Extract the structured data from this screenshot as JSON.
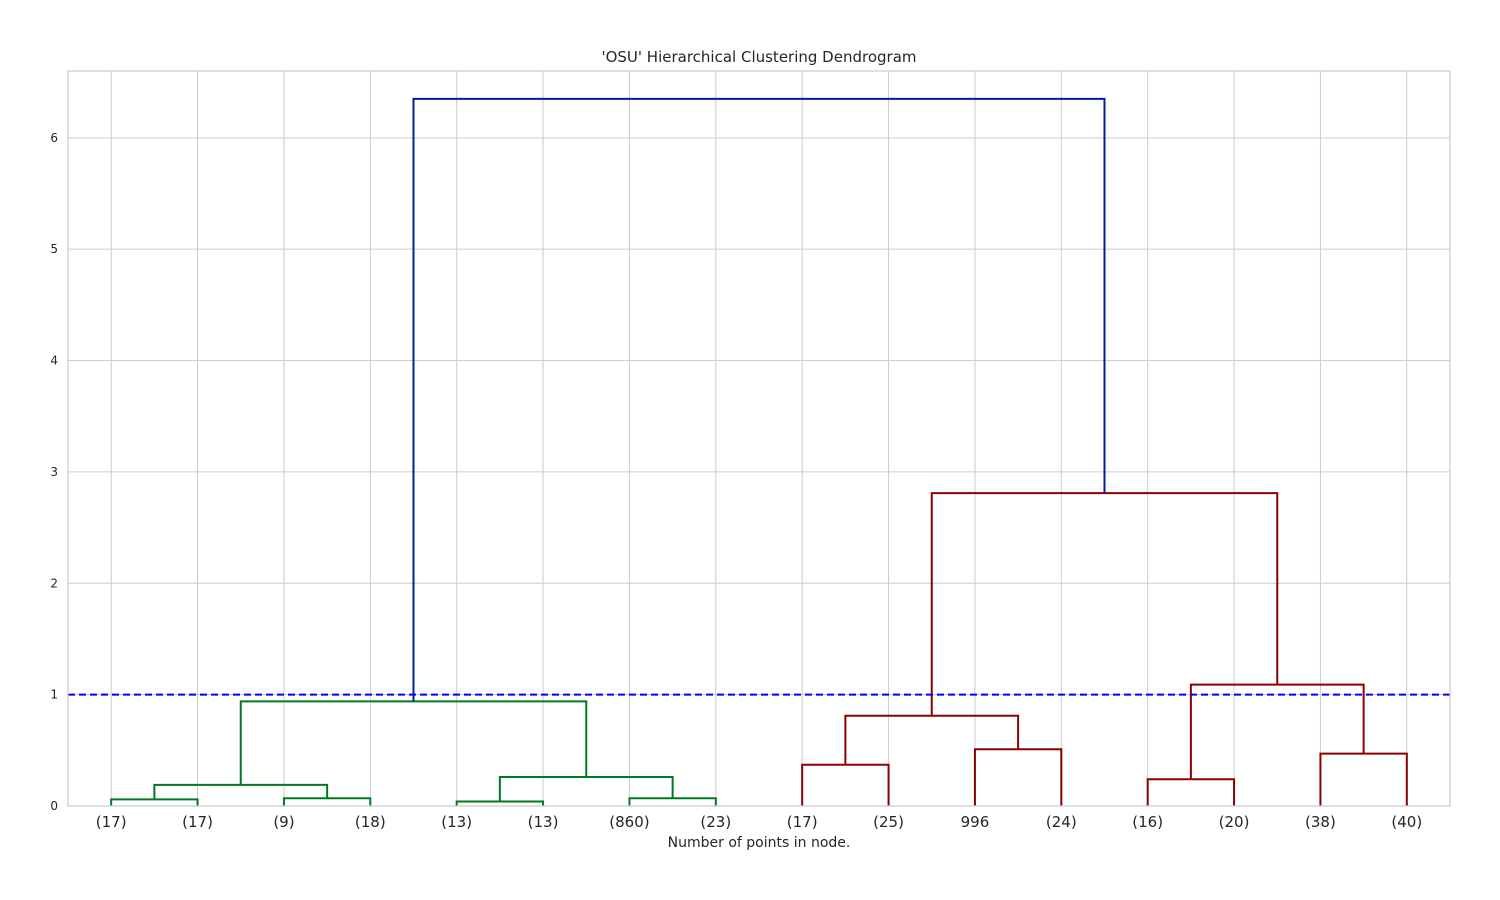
{
  "chart_data": {
    "type": "dendrogram",
    "title": "'OSU' Hierarchical Clustering Dendrogram",
    "xlabel": "Number of points in node.",
    "ylabel": "",
    "ylim": [
      0,
      6.6
    ],
    "yticks": [
      "0",
      "1",
      "2",
      "3",
      "4",
      "5",
      "6"
    ],
    "grid": true,
    "leaves": [
      "(17)",
      "(17)",
      "(9)",
      "(18)",
      "(13)",
      "(13)",
      "(860)",
      "(23)",
      "(17)",
      "(25)",
      "996",
      "(24)",
      "(16)",
      "(20)",
      "(38)",
      "(40)"
    ],
    "threshold": 1.0,
    "colors": {
      "left_cluster": "#007a1f",
      "right_cluster": "#8b0000",
      "root": "#001f9b",
      "threshold": "#0000ff",
      "grid": "#cccccc",
      "frame": "#cccccc"
    },
    "merges": [
      {
        "name": "merge-a",
        "left_leaf": 0,
        "right_leaf": 1,
        "height": 0.06,
        "color": "left_cluster"
      },
      {
        "name": "merge-b",
        "left_leaf": 2,
        "right_leaf": 3,
        "height": 0.07,
        "color": "left_cluster"
      },
      {
        "name": "merge-ab",
        "left": "merge-a",
        "right": "merge-b",
        "height": 0.19,
        "color": "left_cluster"
      },
      {
        "name": "merge-c",
        "left_leaf": 4,
        "right_leaf": 5,
        "height": 0.04,
        "color": "left_cluster"
      },
      {
        "name": "merge-d",
        "left_leaf": 6,
        "right_leaf": 7,
        "height": 0.07,
        "color": "left_cluster"
      },
      {
        "name": "merge-cd",
        "left": "merge-c",
        "right": "merge-d",
        "height": 0.26,
        "color": "left_cluster"
      },
      {
        "name": "merge-left",
        "left": "merge-ab",
        "right": "merge-cd",
        "height": 0.94,
        "color": "left_cluster"
      },
      {
        "name": "merge-e",
        "left_leaf": 8,
        "right_leaf": 9,
        "height": 0.37,
        "color": "right_cluster"
      },
      {
        "name": "merge-f",
        "left_leaf": 10,
        "right_leaf": 11,
        "height": 0.51,
        "color": "right_cluster"
      },
      {
        "name": "merge-ef",
        "left": "merge-e",
        "right": "merge-f",
        "height": 0.81,
        "color": "right_cluster"
      },
      {
        "name": "merge-g",
        "left_leaf": 12,
        "right_leaf": 13,
        "height": 0.24,
        "color": "right_cluster"
      },
      {
        "name": "merge-h",
        "left_leaf": 14,
        "right_leaf": 15,
        "height": 0.47,
        "color": "right_cluster"
      },
      {
        "name": "merge-gh",
        "left": "merge-g",
        "right": "merge-h",
        "height": 1.09,
        "color": "right_cluster"
      },
      {
        "name": "merge-right",
        "left": "merge-ef",
        "right": "merge-gh",
        "height": 2.81,
        "color": "right_cluster"
      },
      {
        "name": "merge-root",
        "left": "merge-left",
        "right": "merge-right",
        "height": 6.35,
        "color": "root"
      }
    ]
  }
}
